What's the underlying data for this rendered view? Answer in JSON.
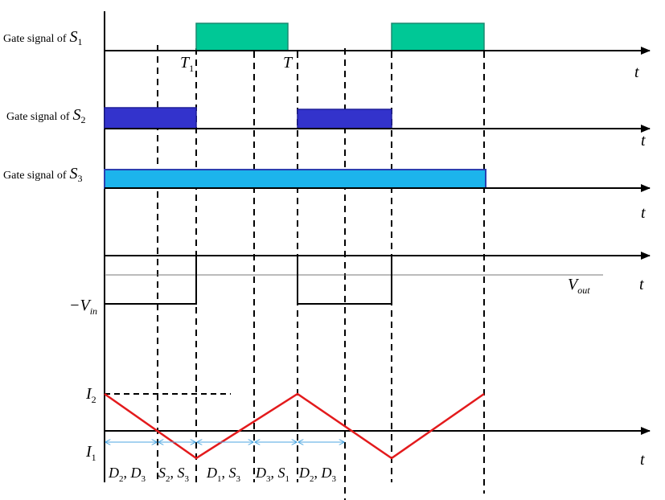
{
  "gate_label_prefix": "Gate signal of",
  "switches": {
    "s1": {
      "sym": "S",
      "sub": "1"
    },
    "s2": {
      "sym": "S",
      "sub": "2"
    },
    "s3": {
      "sym": "S",
      "sub": "3"
    }
  },
  "axis_label": "t",
  "times": {
    "t1": {
      "sym": "T",
      "sub": "1"
    },
    "t": {
      "sym": "T"
    }
  },
  "voltage": {
    "neg_vin": {
      "prefix": "−V",
      "sub": "in"
    },
    "vout": {
      "sym": "V",
      "sub": "out"
    }
  },
  "currents": {
    "i2": {
      "sym": "I",
      "sub": "2"
    },
    "i1": {
      "sym": "I",
      "sub": "1"
    }
  },
  "intervals": [
    {
      "a": "D",
      "as": "2",
      "b": "D",
      "bs": "3"
    },
    {
      "a": "S",
      "as": "2",
      "b": "S",
      "bs": "3"
    },
    {
      "a": "D",
      "as": "1",
      "b": "S",
      "bs": "3"
    },
    {
      "a": "D",
      "as": "3",
      "b": "S",
      "bs": "1"
    },
    {
      "a": "D",
      "as": "2",
      "b": "D",
      "bs": "3"
    }
  ],
  "colors": {
    "s1_pulse": "#00c896",
    "s2_pulse": "#3333cc",
    "s3_pulse": "#1cb4ec",
    "current": "#e31a1c",
    "interval_arrow": "#4da6e0"
  }
}
